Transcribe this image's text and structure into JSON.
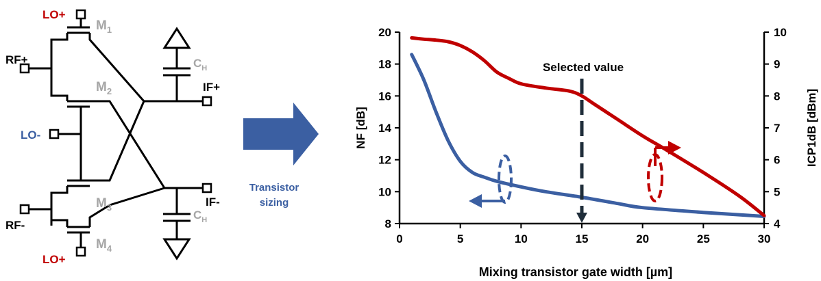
{
  "circuit": {
    "labels": {
      "lo_plus_top": "LO+",
      "lo_minus": "LO-",
      "lo_plus_bottom": "LO+",
      "rf_plus": "RF+",
      "rf_minus": "RF-",
      "if_plus": "IF+",
      "if_minus": "IF-",
      "m1": "M",
      "m1_sub": "1",
      "m2": "M",
      "m2_sub": "2",
      "m3": "M",
      "m3_sub": "3",
      "m4": "M",
      "m4_sub": "4",
      "ch_top": "C",
      "ch_top_sub": "H",
      "ch_bottom": "C",
      "ch_bottom_sub": "H"
    }
  },
  "arrow": {
    "line1": "Transistor",
    "line2": "sizing"
  },
  "colors": {
    "red": "#c00000",
    "blue": "#3b5fa2",
    "gray": "#a6a6a6",
    "dark": "#1f2d3a"
  },
  "annotation": {
    "selected_label": "Selected value"
  },
  "chart_data": {
    "type": "line",
    "xlabel": "Mixing transistor gate width [µm]",
    "ylabel_left": "NF [dB]",
    "ylabel_right": "ICP1dB [dBm]",
    "xlim": [
      0,
      30
    ],
    "ylim_left": [
      8,
      20
    ],
    "ylim_right": [
      4,
      10
    ],
    "x_ticks": [
      "0",
      "5",
      "10",
      "15",
      "20",
      "25",
      "30"
    ],
    "y_ticks_left": [
      "8",
      "10",
      "12",
      "14",
      "16",
      "18",
      "20"
    ],
    "y_ticks_right": [
      "4",
      "5",
      "6",
      "7",
      "8",
      "9",
      "10"
    ],
    "selected_x": 15,
    "series": [
      {
        "axis": "left",
        "color": "#3b5fa2",
        "x": [
          1,
          2,
          3,
          4,
          5,
          6,
          7,
          8,
          10,
          12,
          15,
          18,
          20,
          25,
          30
        ],
        "y": [
          18.6,
          17.0,
          15.0,
          13.2,
          11.9,
          11.2,
          10.9,
          10.65,
          10.3,
          10.0,
          9.65,
          9.25,
          9.0,
          8.7,
          8.45
        ]
      },
      {
        "axis": "right",
        "color": "#c00000",
        "x": [
          1,
          2,
          3,
          4,
          5,
          6,
          7,
          8,
          9,
          10,
          12,
          14,
          15,
          16,
          18,
          20,
          22,
          25,
          28,
          30
        ],
        "y": [
          9.82,
          9.78,
          9.75,
          9.7,
          9.58,
          9.38,
          9.1,
          8.75,
          8.55,
          8.38,
          8.25,
          8.15,
          8.0,
          7.75,
          7.25,
          6.75,
          6.3,
          5.6,
          4.85,
          4.25
        ]
      }
    ]
  }
}
